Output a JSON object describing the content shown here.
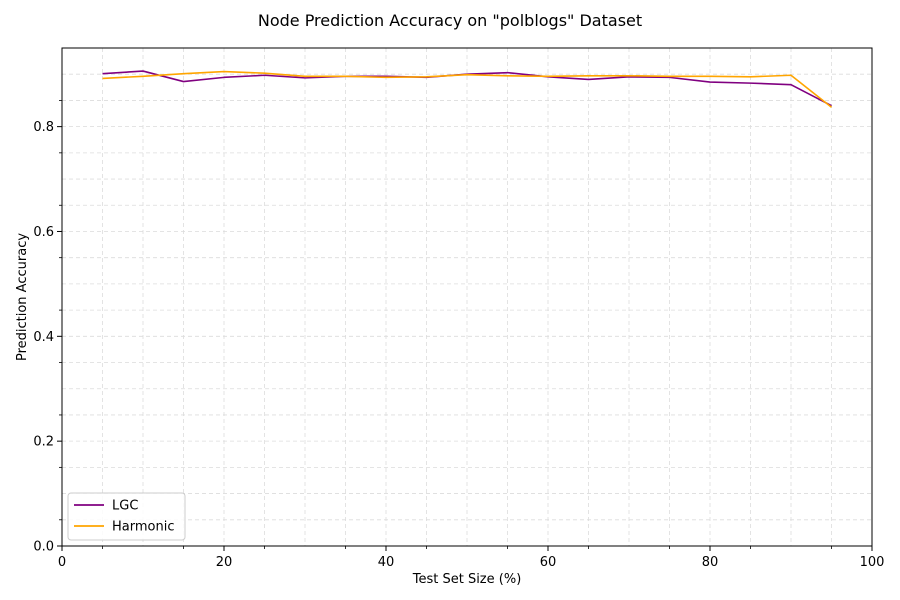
{
  "chart_data": {
    "type": "line",
    "title": "Node Prediction Accuracy on \"polblogs\" Dataset",
    "xlabel": "Test Set Size (%)",
    "ylabel": "Prediction Accuracy",
    "xlim": [
      0,
      100
    ],
    "ylim": [
      0,
      0.95
    ],
    "xticks": [
      0,
      20,
      40,
      60,
      80,
      100
    ],
    "yticks": [
      0.0,
      0.2,
      0.4,
      0.6,
      0.8
    ],
    "xtick_labels": [
      "0",
      "20",
      "40",
      "60",
      "80",
      "100"
    ],
    "ytick_labels": [
      "0.0",
      "0.2",
      "0.4",
      "0.6",
      "0.8"
    ],
    "grid": true,
    "legend": "lower-left",
    "x": [
      5,
      10,
      15,
      20,
      25,
      30,
      35,
      40,
      45,
      50,
      55,
      60,
      65,
      70,
      75,
      80,
      85,
      90,
      95
    ],
    "series": [
      {
        "name": "LGC",
        "color": "#800080",
        "values": [
          0.901,
          0.906,
          0.886,
          0.894,
          0.898,
          0.893,
          0.896,
          0.896,
          0.894,
          0.9,
          0.903,
          0.895,
          0.89,
          0.895,
          0.894,
          0.885,
          0.883,
          0.88,
          0.84
        ]
      },
      {
        "name": "Harmonic",
        "color": "#FFA500",
        "values": [
          0.892,
          0.896,
          0.901,
          0.905,
          0.902,
          0.896,
          0.896,
          0.894,
          0.895,
          0.899,
          0.897,
          0.896,
          0.897,
          0.897,
          0.896,
          0.896,
          0.895,
          0.898,
          0.837
        ]
      }
    ]
  }
}
